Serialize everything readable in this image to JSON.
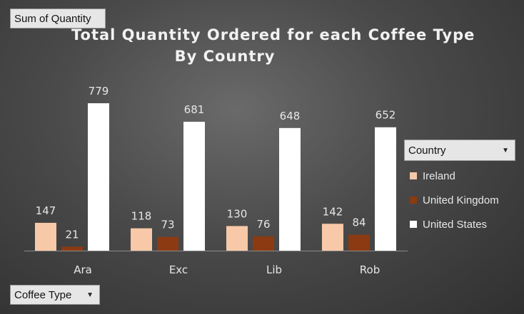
{
  "pivot": {
    "value_field": "Sum of Quantity",
    "legend_field": "Country",
    "axis_field": "Coffee Type"
  },
  "chart_data": {
    "type": "bar",
    "title_line1": "Total Quantity Ordered for each Coffee Type",
    "title_line2": "By Country",
    "categories": [
      "Ara",
      "Exc",
      "Lib",
      "Rob"
    ],
    "series": [
      {
        "name": "Ireland",
        "color": "#f8c9a8",
        "values": [
          147,
          118,
          130,
          142
        ]
      },
      {
        "name": "United Kingdom",
        "color": "#8b3a12",
        "values": [
          21,
          73,
          76,
          84
        ]
      },
      {
        "name": "United States",
        "color": "#ffffff",
        "values": [
          779,
          681,
          648,
          652
        ]
      }
    ],
    "ylim": [
      0,
      779
    ],
    "grid": false,
    "legend_position": "right",
    "data_labels": true
  }
}
